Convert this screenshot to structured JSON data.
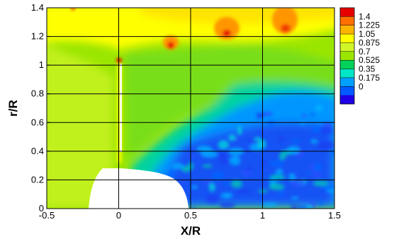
{
  "chart_data": {
    "type": "heatmap",
    "title": "",
    "xlabel": "X/R",
    "ylabel": "r/R",
    "xlim": [
      -0.5,
      1.5
    ],
    "ylim": [
      0,
      1.4
    ],
    "x_ticks": [
      "-0.5",
      "0",
      "0.5",
      "1",
      "1.5"
    ],
    "y_ticks": [
      "0",
      "0.2",
      "0.4",
      "0.6",
      "0.8",
      "1",
      "1.2",
      "1.4"
    ],
    "grid": true,
    "legend": {
      "placement": "right",
      "levels": [
        "1.4",
        "1.225",
        "1.05",
        "0.875",
        "0.7",
        "0.525",
        "0.35",
        "0.175",
        "0"
      ],
      "colors": [
        "#e60000",
        "#ff6f00",
        "#ffb400",
        "#ffff00",
        "#d2f528",
        "#9be600",
        "#00d25a",
        "#00e6c8",
        "#00a0ff",
        "#005aff",
        "#1e00e6"
      ]
    },
    "features": {
      "tip_vortex_peaks_x": [
        0.38,
        0.77,
        1.16
      ],
      "tip_vortex_peak_r": 1.22,
      "nacelle_radius": 0.2,
      "nacelle_nose_x": -0.2,
      "nacelle_end_x": 0.5
    }
  }
}
